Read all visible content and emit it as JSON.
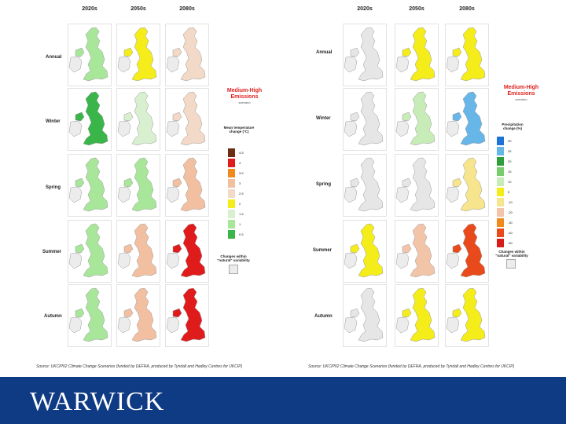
{
  "panels": [
    {
      "id": "temperature",
      "columns": [
        "2020s",
        "2050s",
        "2080s"
      ],
      "rows": [
        "Annual",
        "Winter",
        "Spring",
        "Summer",
        "Autumn"
      ],
      "scenario_title": "Medium-High Emissions",
      "scenario_sub": "scenario",
      "legend_title": "Mean temperature change (°C)",
      "legend_items": [
        {
          "label": "4.5",
          "color": "#6b2e12"
        },
        {
          "label": "4",
          "color": "#e01b1b"
        },
        {
          "label": "3.5",
          "color": "#f08a1e"
        },
        {
          "label": "3",
          "color": "#f2c0a0"
        },
        {
          "label": "2.5",
          "color": "#f3d9c7"
        },
        {
          "label": "2",
          "color": "#f5ed1a"
        },
        {
          "label": "1.5",
          "color": "#d8f0d0"
        },
        {
          "label": "1",
          "color": "#a8e69a"
        },
        {
          "label": "0.5",
          "color": "#39b54a"
        }
      ],
      "variability_label": "Changes within \"natural\" variability",
      "source": "Source: UKCIP02 Climate Change Scenarios (funded by DEFRA, produced by Tyndall and Hadley Centres for UKCIP)",
      "cells": [
        [
          "#a8e69a",
          "#f5ed1a",
          "#f3d9c7"
        ],
        [
          "#39b54a",
          "#d8f0d0",
          "#f3d9c7"
        ],
        [
          "#a8e69a",
          "#a8e69a",
          "#f2c0a0"
        ],
        [
          "#a8e69a",
          "#f2c0a0",
          "#e01b1b"
        ],
        [
          "#a8e69a",
          "#f2c0a0",
          "#e01b1b"
        ]
      ]
    },
    {
      "id": "precipitation",
      "columns": [
        "2020s",
        "2050s",
        "2080s"
      ],
      "rows": [
        "Annual",
        "Winter",
        "Spring",
        "Summer",
        "Autumn"
      ],
      "scenario_title": "Medium-High Emissions",
      "scenario_sub": "scenario",
      "legend_title": "Precipitation change (%)",
      "legend_items": [
        {
          "label": "30",
          "color": "#1e74d6"
        },
        {
          "label": "25",
          "color": "#66b6e8"
        },
        {
          "label": "20",
          "color": "#2e9e3c"
        },
        {
          "label": "15",
          "color": "#79cc6e"
        },
        {
          "label": "10",
          "color": "#c8ecb8"
        },
        {
          "label": "5",
          "color": "#f5ed1a"
        },
        {
          "label": "-10",
          "color": "#f6e58c"
        },
        {
          "label": "-20",
          "color": "#f3c5a8"
        },
        {
          "label": "-30",
          "color": "#f08a1e"
        },
        {
          "label": "-40",
          "color": "#e84a1b"
        },
        {
          "label": "-50",
          "color": "#d81b1b"
        }
      ],
      "variability_label": "Changes within \"natural\" variability",
      "source": "Source: UKCIP02 Climate Change Scenarios (funded by DEFRA, produced by Tyndall and Hadley Centres for UKCIP)",
      "cells": [
        [
          "#e6e6e6",
          "#f5ed1a",
          "#f5ed1a"
        ],
        [
          "#e6e6e6",
          "#c8ecb8",
          "#66b6e8"
        ],
        [
          "#e6e6e6",
          "#e6e6e6",
          "#f6e58c"
        ],
        [
          "#f5ed1a",
          "#f3c5a8",
          "#e84a1b"
        ],
        [
          "#e6e6e6",
          "#f5ed1a",
          "#f5ed1a"
        ]
      ]
    }
  ],
  "footer": {
    "logo_text": "WARWICK",
    "bg_color": "#0f3b84"
  }
}
